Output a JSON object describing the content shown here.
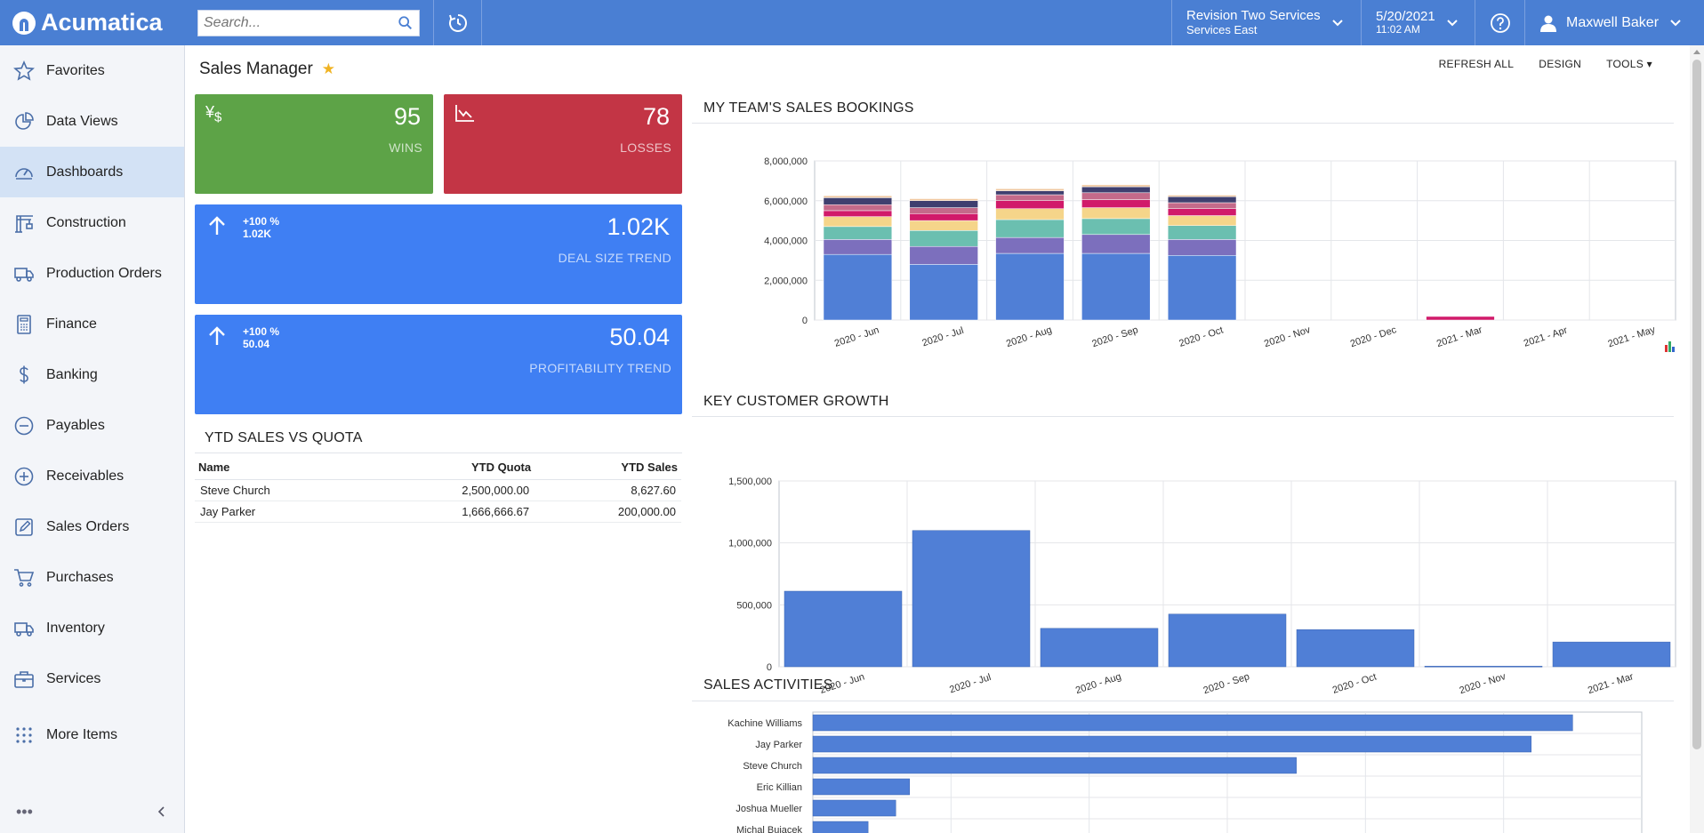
{
  "brand": {
    "name": "Acumatica"
  },
  "search": {
    "placeholder": "Search..."
  },
  "header": {
    "company_line1": "Revision Two Services",
    "company_line2": "Services East",
    "date": "5/20/2021",
    "time": "11:02 AM",
    "user": "Maxwell Baker"
  },
  "sidebar": {
    "items": [
      {
        "label": "Favorites",
        "icon": "star-icon"
      },
      {
        "label": "Data Views",
        "icon": "pie-chart-icon"
      },
      {
        "label": "Dashboards",
        "icon": "gauge-icon"
      },
      {
        "label": "Construction",
        "icon": "crane-icon"
      },
      {
        "label": "Production Orders",
        "icon": "truck-icon"
      },
      {
        "label": "Finance",
        "icon": "calculator-icon"
      },
      {
        "label": "Banking",
        "icon": "dollar-icon"
      },
      {
        "label": "Payables",
        "icon": "minus-circle-icon"
      },
      {
        "label": "Receivables",
        "icon": "plus-circle-icon"
      },
      {
        "label": "Sales Orders",
        "icon": "edit-icon"
      },
      {
        "label": "Purchases",
        "icon": "cart-icon"
      },
      {
        "label": "Inventory",
        "icon": "truck-icon"
      },
      {
        "label": "Services",
        "icon": "briefcase-icon"
      }
    ],
    "more": "More Items",
    "active": "Dashboards"
  },
  "page": {
    "title": "Sales Manager"
  },
  "toolbar": {
    "refresh": "REFRESH ALL",
    "design": "DESIGN",
    "tools": "TOOLS"
  },
  "tiles": {
    "wins": {
      "value": "95",
      "label": "WINS",
      "color": "#5da347"
    },
    "losses": {
      "value": "78",
      "label": "LOSSES",
      "color": "#c33545"
    },
    "deal": {
      "value": "1.02K",
      "label": "DEAL SIZE TREND",
      "trend_pct": "+100 %",
      "trend_val": "1.02K",
      "color": "#3f7ff3"
    },
    "profit": {
      "value": "50.04",
      "label": "PROFITABILITY TREND",
      "trend_pct": "+100 %",
      "trend_val": "50.04",
      "color": "#3f7ff3"
    }
  },
  "ytd": {
    "title": "YTD SALES VS QUOTA",
    "headers": [
      "Name",
      "YTD Quota",
      "YTD Sales"
    ],
    "rows": [
      [
        "Steve Church",
        "2,500,000.00",
        "8,627.60"
      ],
      [
        "Jay Parker",
        "1,666,666.67",
        "200,000.00"
      ]
    ]
  },
  "chart_data": [
    {
      "type": "bar",
      "title": "MY TEAM'S SALES BOOKINGS",
      "stacked": true,
      "categories": [
        "2020 - Jun",
        "2020 - Jul",
        "2020 - Aug",
        "2020 - Sep",
        "2020 - Oct",
        "2020 - Nov",
        "2020 - Dec",
        "2021 - Mar",
        "2021 - Apr",
        "2021 - May"
      ],
      "ylim": [
        0,
        8000000
      ],
      "yticks": [
        "0",
        "2,000,000",
        "4,000,000",
        "6,000,000",
        "8,000,000"
      ],
      "colors": [
        "#507fd6",
        "#7c6fbd",
        "#6bbfb0",
        "#f5d58a",
        "#d11a6a",
        "#c46a8a",
        "#3f3f6f",
        "#f0c8a0"
      ],
      "series": [
        {
          "values": [
            3300000,
            2800000,
            3350000,
            3350000,
            3250000,
            0,
            0,
            0,
            0,
            0
          ]
        },
        {
          "values": [
            750000,
            900000,
            800000,
            950000,
            800000,
            0,
            0,
            0,
            0,
            0
          ]
        },
        {
          "values": [
            650000,
            800000,
            900000,
            800000,
            700000,
            0,
            0,
            0,
            0,
            0
          ]
        },
        {
          "values": [
            500000,
            500000,
            550000,
            550000,
            500000,
            0,
            0,
            0,
            0,
            0
          ]
        },
        {
          "values": [
            300000,
            350000,
            400000,
            400000,
            350000,
            0,
            0,
            180000,
            0,
            0
          ]
        },
        {
          "values": [
            300000,
            300000,
            300000,
            350000,
            300000,
            0,
            0,
            0,
            0,
            0
          ]
        },
        {
          "values": [
            350000,
            350000,
            200000,
            300000,
            300000,
            0,
            0,
            0,
            0,
            0
          ]
        },
        {
          "values": [
            100000,
            100000,
            100000,
            100000,
            80000,
            0,
            0,
            0,
            0,
            0
          ]
        }
      ]
    },
    {
      "type": "bar",
      "title": "KEY CUSTOMER GROWTH",
      "categories": [
        "2020 - Jun",
        "2020 - Jul",
        "2020 - Aug",
        "2020 - Sep",
        "2020 - Oct",
        "2020 - Nov",
        "2021 - Mar"
      ],
      "values": [
        610000,
        1100000,
        310000,
        425000,
        300000,
        5000,
        200000
      ],
      "ylim": [
        0,
        1500000
      ],
      "yticks": [
        "0",
        "500,000",
        "1,000,000",
        "1,500,000"
      ],
      "color": "#507fd6"
    },
    {
      "type": "bar",
      "orientation": "horizontal",
      "title": "SALES ACTIVITIES",
      "categories": [
        "Kachine Williams",
        "Jay Parker",
        "Steve Church",
        "Eric Killian",
        "Joshua Mueller",
        "Michal Bujacek"
      ],
      "values": [
        110,
        104,
        70,
        14,
        12,
        8
      ],
      "xlim": [
        0,
        120
      ],
      "color": "#507fd6"
    }
  ]
}
